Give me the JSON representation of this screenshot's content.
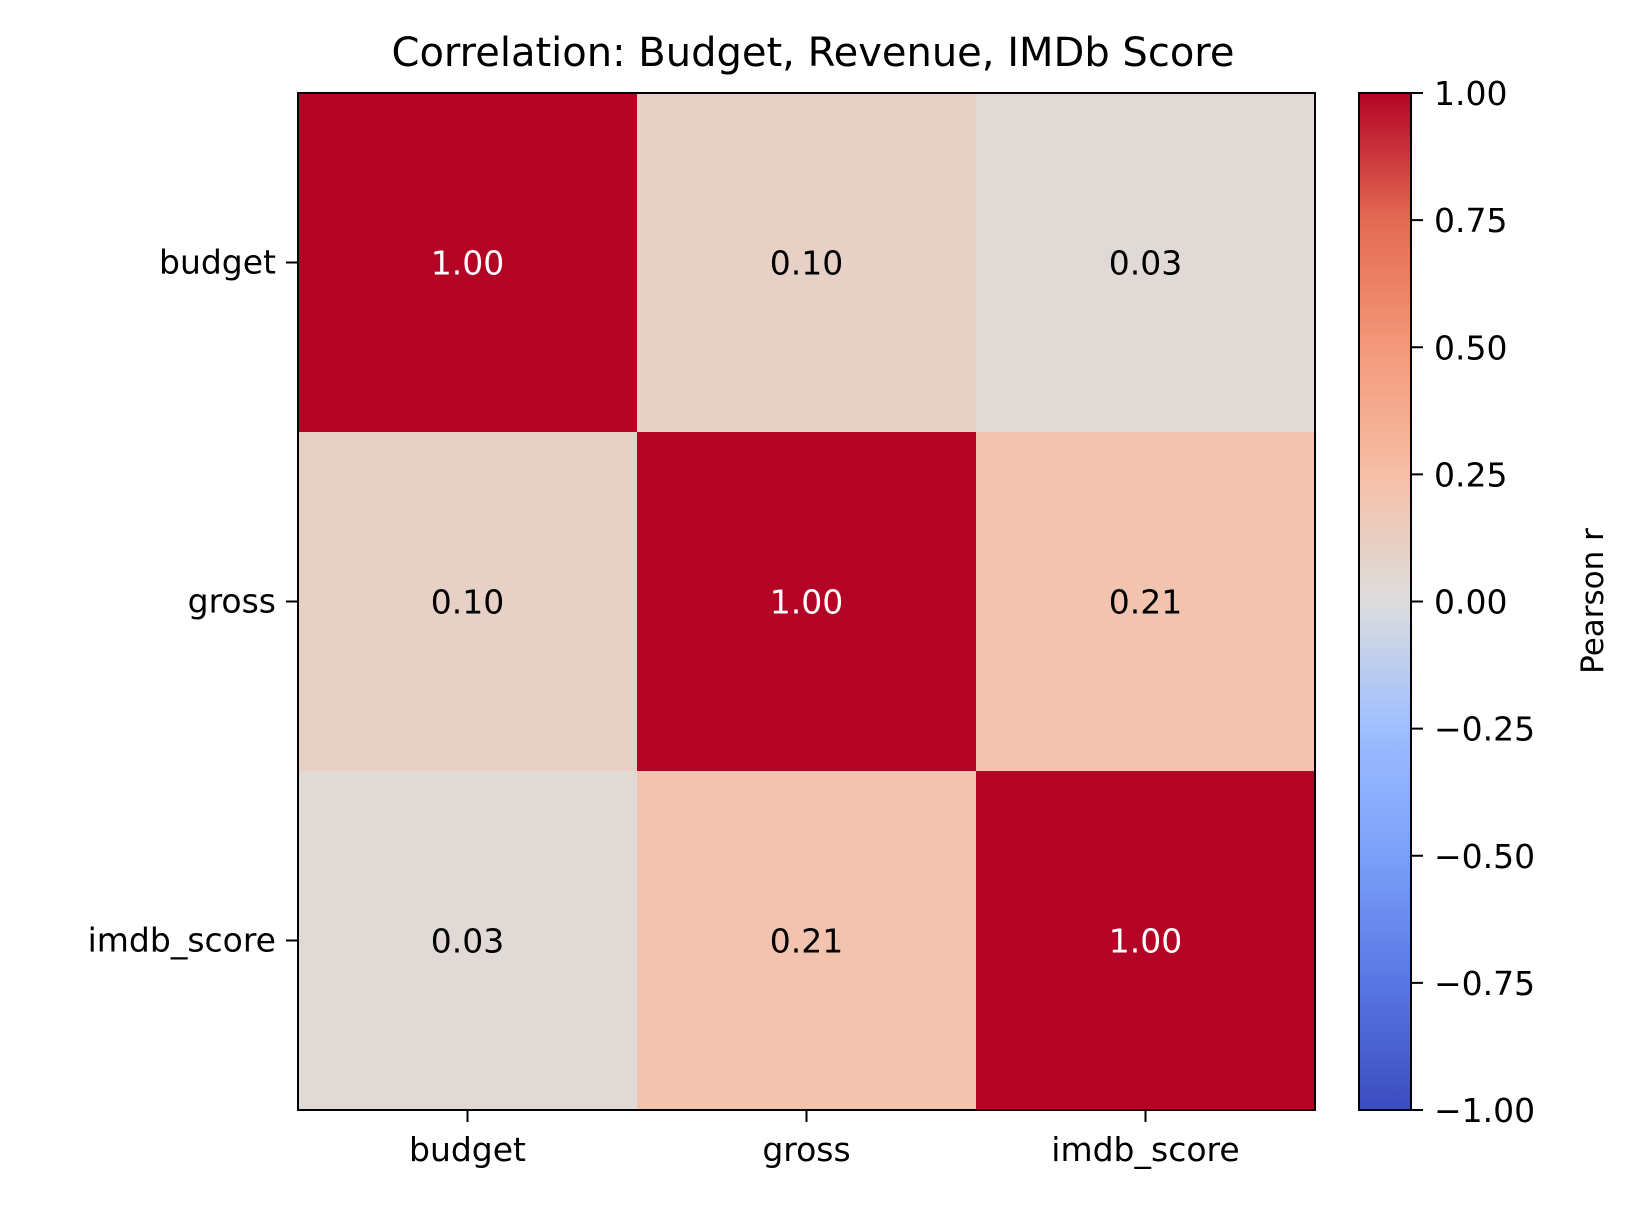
{
  "chart_data": {
    "type": "heatmap",
    "title": "Correlation: Budget, Revenue, IMDb Score",
    "rows": [
      "budget",
      "gross",
      "imdb_score"
    ],
    "columns": [
      "budget",
      "gross",
      "imdb_score"
    ],
    "values": [
      [
        1.0,
        0.1,
        0.03
      ],
      [
        0.1,
        1.0,
        0.21
      ],
      [
        0.03,
        0.21,
        1.0
      ]
    ],
    "value_labels": [
      [
        "1.00",
        "0.10",
        "0.03"
      ],
      [
        "0.10",
        "1.00",
        "0.21"
      ],
      [
        "0.03",
        "0.21",
        "1.00"
      ]
    ],
    "colormap": "coolwarm",
    "vmin": -1.0,
    "vmax": 1.0,
    "colorbar": {
      "label": "Pearson r",
      "ticks": [
        1.0,
        0.75,
        0.5,
        0.25,
        0.0,
        -0.25,
        -0.5,
        -0.75,
        -1.0
      ],
      "tick_labels": [
        "1.00",
        "0.75",
        "0.50",
        "0.25",
        "0.00",
        "−0.25",
        "−0.50",
        "−0.75",
        "−1.00"
      ]
    },
    "grid": false
  }
}
